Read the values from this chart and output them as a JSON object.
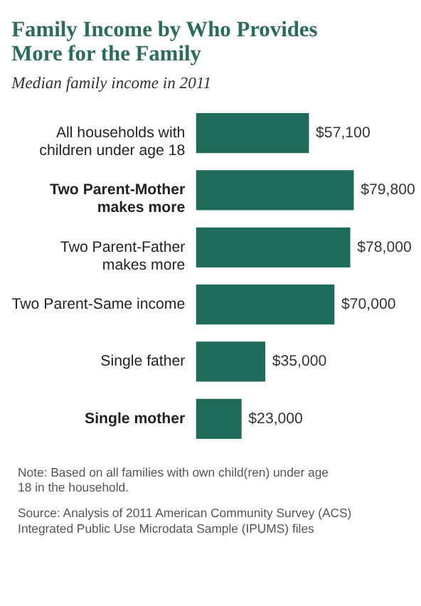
{
  "chart_data": {
    "type": "bar",
    "orientation": "horizontal",
    "title": "Family Income by Who Provides More for the Family",
    "subtitle": "Median family income in 2011",
    "categories": [
      "All households with children under age 18",
      "Two Parent-Mother makes more",
      "Two Parent-Father makes more",
      "Two Parent-Same income",
      "Single father",
      "Single mother"
    ],
    "values": [
      57100,
      79800,
      78000,
      70000,
      35000,
      23000
    ],
    "value_labels": [
      "$57,100",
      "$79,800",
      "$78,000",
      "$70,000",
      "$35,000",
      "$23,000"
    ],
    "color": "#1f6b5a",
    "annotations": [
      "Note: Based on all families with own child(ren) under age 18 in the household.",
      "Source: Analysis of 2011 American Community Survey (ACS) Integrated Public Use Microdata Sample (IPUMS) files"
    ]
  }
}
